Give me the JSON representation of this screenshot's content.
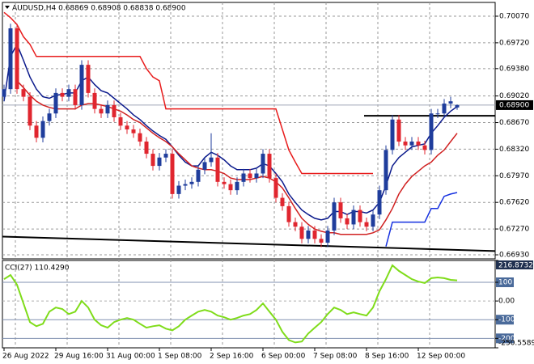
{
  "chart_data": [
    {
      "type": "candlestick",
      "title": "AUDUSD,H4  0.68869 0.68908 0.68838 0.68900",
      "categories": [
        "26 Aug 2022",
        null,
        null,
        null,
        null,
        null,
        null,
        null,
        "29 Aug 16:00",
        null,
        null,
        null,
        null,
        null,
        null,
        null,
        "31 Aug 00:00",
        null,
        null,
        null,
        null,
        null,
        null,
        null,
        "1 Sep 08:00",
        null,
        null,
        null,
        null,
        null,
        null,
        null,
        "2 Sep 16:00",
        null,
        null,
        null,
        null,
        null,
        null,
        null,
        "6 Sep 00:00",
        null,
        null,
        null,
        null,
        null,
        null,
        null,
        "7 Sep 08:00",
        null,
        null,
        null,
        null,
        null,
        null,
        null,
        "8 Sep 16:00",
        null,
        null,
        null,
        null,
        null,
        null,
        null,
        "12 Sep 00:00",
        null,
        null,
        null,
        null,
        null,
        null
      ],
      "open": [
        0.6901,
        0.6911,
        0.6991,
        0.6911,
        0.6901,
        0.6863,
        0.6847,
        0.6869,
        0.6879,
        0.6906,
        0.6901,
        0.6911,
        0.689,
        0.6943,
        0.6906,
        0.6885,
        0.6879,
        0.689,
        0.6874,
        0.6863,
        0.6858,
        0.6853,
        0.6842,
        0.6826,
        0.681,
        0.6821,
        0.6826,
        0.6773,
        0.6784,
        0.6786,
        0.6789,
        0.6805,
        0.6815,
        0.6821,
        0.6789,
        0.6786,
        0.6778,
        0.6789,
        0.68,
        0.6794,
        0.68,
        0.6826,
        0.6794,
        0.6768,
        0.6757,
        0.6736,
        0.673,
        0.6714,
        0.6725,
        0.6714,
        0.6709,
        0.6725,
        0.6762,
        0.6741,
        0.6733,
        0.6752,
        0.6736,
        0.673,
        0.6746,
        0.6778,
        0.6831,
        0.6871,
        0.6842,
        0.6837,
        0.6842,
        0.6837,
        0.6831,
        0.6879,
        0.6879,
        0.6892,
        0.68869
      ],
      "high": [
        0.6917,
        0.6997,
        0.6997,
        0.6917,
        0.6907,
        0.6869,
        0.6875,
        0.6885,
        0.6912,
        0.6912,
        0.6917,
        0.6917,
        0.6949,
        0.6949,
        0.6912,
        0.6891,
        0.6896,
        0.6896,
        0.688,
        0.6869,
        0.6864,
        0.6859,
        0.6848,
        0.6832,
        0.6827,
        0.6832,
        0.6832,
        0.679,
        0.6792,
        0.6795,
        0.6811,
        0.6821,
        0.6853,
        0.6827,
        0.6795,
        0.6792,
        0.6795,
        0.6806,
        0.6806,
        0.6806,
        0.6832,
        0.6832,
        0.68,
        0.6774,
        0.6763,
        0.6742,
        0.6736,
        0.6731,
        0.6731,
        0.672,
        0.6731,
        0.6768,
        0.6768,
        0.6747,
        0.6758,
        0.6758,
        0.6742,
        0.6752,
        0.6784,
        0.6837,
        0.6877,
        0.6877,
        0.6848,
        0.6848,
        0.6848,
        0.6843,
        0.6885,
        0.6885,
        0.6898,
        0.6901,
        0.68908
      ],
      "low": [
        0.6895,
        0.6905,
        0.6905,
        0.6895,
        0.6857,
        0.6841,
        0.6841,
        0.6863,
        0.6873,
        0.6895,
        0.6895,
        0.6884,
        0.6884,
        0.69,
        0.6879,
        0.6873,
        0.6873,
        0.6868,
        0.6857,
        0.6852,
        0.6847,
        0.6836,
        0.682,
        0.6804,
        0.6804,
        0.6815,
        0.6767,
        0.6767,
        0.6778,
        0.678,
        0.6783,
        0.6799,
        0.6809,
        0.6783,
        0.678,
        0.6772,
        0.6772,
        0.6783,
        0.6788,
        0.6788,
        0.6794,
        0.6788,
        0.6762,
        0.6751,
        0.673,
        0.6724,
        0.6708,
        0.6708,
        0.6708,
        0.6703,
        0.6703,
        0.6719,
        0.6735,
        0.6727,
        0.6727,
        0.673,
        0.6724,
        0.6724,
        0.674,
        0.6772,
        0.6825,
        0.6836,
        0.6831,
        0.6831,
        0.6831,
        0.6825,
        0.6825,
        0.6873,
        0.6873,
        0.6886,
        0.68838
      ],
      "close": [
        0.6911,
        0.6991,
        0.6911,
        0.6901,
        0.6863,
        0.6847,
        0.6869,
        0.6879,
        0.6906,
        0.6901,
        0.6911,
        0.689,
        0.6943,
        0.6906,
        0.6885,
        0.6879,
        0.689,
        0.6874,
        0.6863,
        0.6858,
        0.6853,
        0.6842,
        0.6826,
        0.681,
        0.6821,
        0.6826,
        0.6773,
        0.6784,
        0.6786,
        0.6789,
        0.6805,
        0.6815,
        0.6821,
        0.6789,
        0.6786,
        0.6778,
        0.6789,
        0.68,
        0.6794,
        0.68,
        0.6826,
        0.6794,
        0.6768,
        0.6757,
        0.6736,
        0.673,
        0.6714,
        0.6725,
        0.6714,
        0.6709,
        0.6725,
        0.6762,
        0.6741,
        0.6733,
        0.6752,
        0.6736,
        0.673,
        0.6746,
        0.6778,
        0.6831,
        0.6871,
        0.6842,
        0.6837,
        0.6842,
        0.6837,
        0.6831,
        0.6879,
        0.6879,
        0.6892,
        0.6895,
        0.689
      ],
      "up_color": "#1f3d9c",
      "down_color": "#e0262f",
      "series": [
        {
          "color": "#0b1a8c",
          "values": [
            0.6895,
            0.6954,
            0.697,
            0.6949,
            0.6927,
            0.6911,
            0.6901,
            0.6899,
            0.6903,
            0.6904,
            0.6906,
            0.6906,
            0.6922,
            0.6927,
            0.6917,
            0.6909,
            0.6906,
            0.6899,
            0.6892,
            0.6885,
            0.6877,
            0.6871,
            0.6863,
            0.6856,
            0.685,
            0.6845,
            0.6835,
            0.6824,
            0.6815,
            0.681,
            0.681,
            0.6821,
            0.6828,
            0.6824,
            0.6818,
            0.681,
            0.6805,
            0.6805,
            0.6805,
            0.6807,
            0.6813,
            0.681,
            0.68,
            0.6789,
            0.6773,
            0.6762,
            0.6752,
            0.6746,
            0.6741,
            0.6739,
            0.6741,
            0.675,
            0.675,
            0.6746,
            0.675,
            0.675,
            0.6748,
            0.6752,
            0.6762,
            0.6784,
            0.681,
            0.6821,
            0.6828,
            0.6835,
            0.6837,
            0.6839,
            0.6853,
            0.6863,
            0.6874,
            0.6882,
            0.6888
          ]
        },
        {
          "color": "#d02020",
          "values": [
            null,
            null,
            0.6922,
            0.6913,
            0.6903,
            0.6895,
            0.689,
            0.6887,
            0.6885,
            0.6885,
            0.6885,
            0.6885,
            0.689,
            0.6892,
            0.6892,
            0.689,
            0.6888,
            0.6885,
            0.6882,
            0.6877,
            0.6871,
            0.6867,
            0.686,
            0.6853,
            0.6847,
            0.6842,
            0.6835,
            0.6826,
            0.6818,
            0.681,
            0.6807,
            0.6805,
            0.6805,
            0.6803,
            0.68,
            0.6794,
            0.6792,
            0.6792,
            0.6792,
            0.6794,
            0.6796,
            0.6794,
            0.6789,
            0.6781,
            0.6768,
            0.6754,
            0.6741,
            0.6733,
            0.6727,
            0.6724,
            0.6722,
            0.6722,
            0.672,
            0.672,
            0.672,
            0.672,
            0.672,
            0.6722,
            0.6726,
            0.6739,
            0.6754,
            0.6773,
            0.6786,
            0.6796,
            0.6803,
            0.681,
            0.6815,
            0.6824,
            0.6831,
            0.6842,
            0.6853
          ]
        },
        {
          "color": "#e81c1c",
          "values": [
            0.7012,
            0.7005,
            0.6996,
            0.698,
            0.697,
            0.6954,
            0.6954,
            0.6954,
            0.6954,
            0.6954,
            0.6954,
            0.6954,
            0.6954,
            0.6954,
            0.6954,
            0.6954,
            0.6954,
            0.6954,
            0.6954,
            0.6954,
            0.6954,
            0.6954,
            0.6938,
            0.6927,
            0.6922,
            0.6885,
            0.6885,
            0.6885,
            0.6885,
            0.6885,
            0.6885,
            0.6885,
            0.6885,
            0.6885,
            0.6885,
            0.6885,
            0.6885,
            0.6885,
            0.6885,
            0.6885,
            0.6885,
            0.6885,
            0.6885,
            0.6858,
            0.6831,
            0.6815,
            0.68,
            0.68,
            0.68,
            0.68,
            0.68,
            0.68,
            0.68,
            0.68,
            0.68,
            0.68,
            0.68,
            0.68,
            null,
            null,
            null,
            null,
            null,
            null,
            null,
            null,
            null,
            null,
            null,
            null,
            null
          ]
        },
        {
          "color": "#1530e0",
          "values": [
            null,
            null,
            null,
            null,
            null,
            null,
            null,
            null,
            null,
            null,
            null,
            null,
            null,
            null,
            null,
            null,
            null,
            null,
            null,
            null,
            null,
            null,
            null,
            null,
            null,
            null,
            null,
            null,
            null,
            null,
            null,
            null,
            null,
            null,
            null,
            null,
            null,
            null,
            null,
            null,
            null,
            null,
            null,
            null,
            null,
            null,
            null,
            null,
            null,
            null,
            null,
            null,
            null,
            null,
            null,
            null,
            null,
            null,
            null,
            0.6704,
            0.6736,
            0.6736,
            0.6736,
            0.6736,
            0.6736,
            0.6736,
            0.6754,
            0.6754,
            0.677,
            0.6773,
            0.6775
          ]
        }
      ],
      "trendline": {
        "color": "#000000",
        "values": [
          0.6717,
          0.6698
        ]
      },
      "hline": {
        "color": "#000000",
        "value": 0.6876
      },
      "last_price": {
        "value": 0.689,
        "label": "0.68900"
      },
      "ylim": [
        0.66877,
        0.70251
      ],
      "yticks": [
        {
          "value": 0.7007,
          "label": "0.70070"
        },
        {
          "value": 0.6972,
          "label": "0.69720"
        },
        {
          "value": 0.6938,
          "label": "0.69380"
        },
        {
          "value": 0.6902,
          "label": "0.69020"
        },
        {
          "value": 0.6867,
          "label": "0.68670"
        },
        {
          "value": 0.6832,
          "label": "0.68320"
        },
        {
          "value": 0.6797,
          "label": "0.67970"
        },
        {
          "value": 0.6762,
          "label": "0.67620"
        },
        {
          "value": 0.6727,
          "label": "0.67270"
        },
        {
          "value": 0.6693,
          "label": "0.66930"
        }
      ],
      "grid": true
    },
    {
      "type": "line",
      "title": "CCI(27) 110.4290",
      "series": [
        {
          "color": "#7fdc1a",
          "values": [
            117,
            139,
            87,
            -13,
            -113,
            -135,
            -122,
            -57,
            -35,
            -43,
            -70,
            -57,
            0,
            -35,
            -100,
            -130,
            -143,
            -113,
            -100,
            -91,
            -100,
            -122,
            -143,
            -135,
            -130,
            -148,
            -157,
            -135,
            -100,
            -78,
            -57,
            -48,
            -57,
            -78,
            -87,
            -100,
            -91,
            -78,
            -70,
            -48,
            -13,
            -57,
            -100,
            -165,
            -209,
            -222,
            -217,
            -174,
            -143,
            -113,
            -70,
            -35,
            -48,
            -70,
            -61,
            -70,
            -78,
            -35,
            52,
            117,
            191,
            161,
            139,
            117,
            104,
            96,
            122,
            126,
            122,
            113,
            110.429
          ]
        }
      ],
      "ylim": [
        -250.5589,
        216.8732
      ],
      "yticks": [
        {
          "value": 216.8732,
          "label": "216.8732"
        },
        100,
        {
          "value": 0,
          "label": "0.00"
        },
        -100,
        -200,
        {
          "value": -250.5589,
          "label": "-250.5589"
        }
      ]
    }
  ]
}
